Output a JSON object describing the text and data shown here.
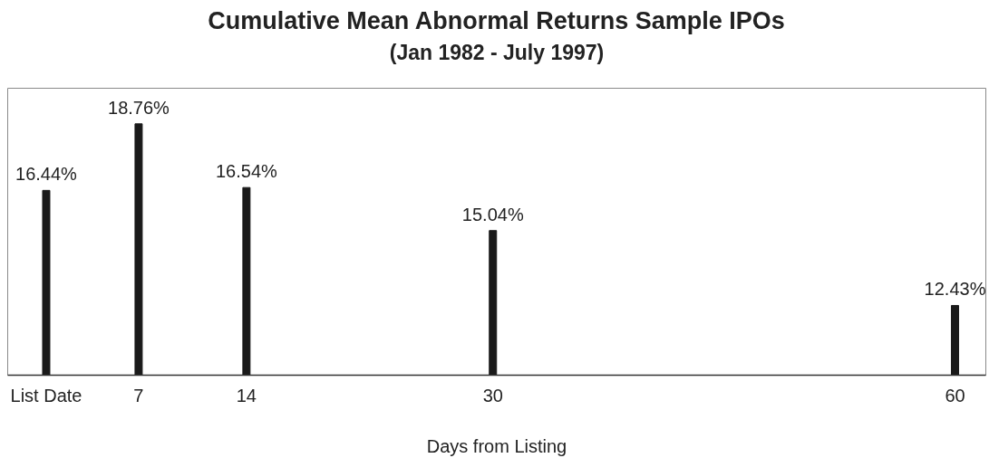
{
  "chart_data": {
    "type": "bar",
    "title": "Cumulative Mean Abnormal Returns Sample IPOs",
    "subtitle": "(Jan 1982 - July 1997)",
    "xlabel": "Days from Listing",
    "x": [
      1,
      7,
      14,
      30,
      60
    ],
    "values": [
      16.44,
      18.76,
      16.54,
      15.04,
      12.43
    ],
    "value_labels": [
      "16.44%",
      "18.76%",
      "16.54%",
      "15.04%",
      "12.43%"
    ],
    "color": "#1a1a1a",
    "xlim": [
      -1.5,
      62
    ],
    "xticks": [
      {
        "value": 1,
        "label": "List Date"
      },
      7,
      14,
      30,
      60
    ],
    "ylim": [
      10,
      20
    ],
    "tick_labels": "x",
    "grid": false
  }
}
